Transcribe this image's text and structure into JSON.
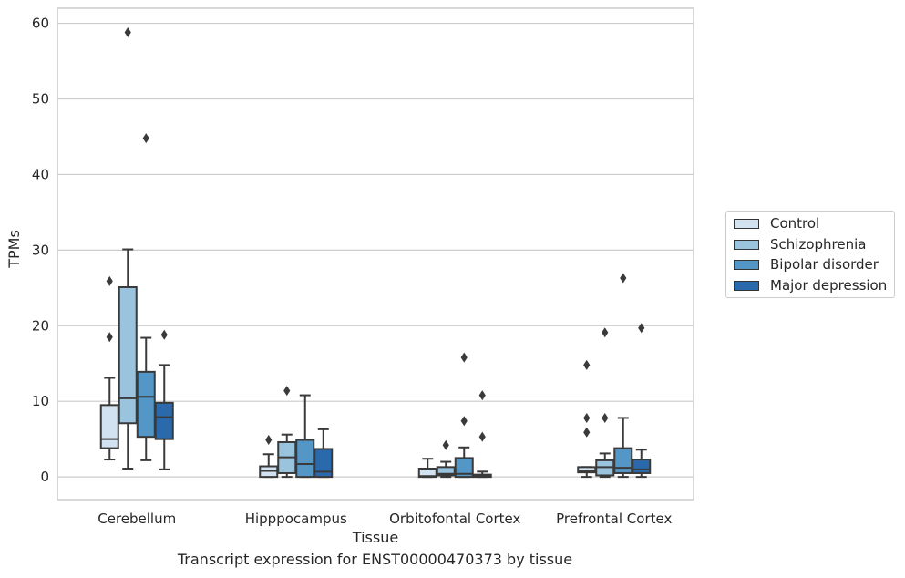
{
  "chart_data": {
    "type": "box",
    "title": "",
    "caption": "Transcript expression for ENST00000470373 by tissue",
    "xlabel": "Tissue",
    "ylabel": "TPMs",
    "ylim": [
      -3,
      62
    ],
    "yticks": [
      0,
      10,
      20,
      30,
      40,
      50,
      60
    ],
    "grid": "horizontal",
    "legend_position": "right",
    "categories": [
      "Cerebellum",
      "Hipppocampus",
      "Orbitofontal Cortex",
      "Prefrontal Cortex"
    ],
    "series": [
      {
        "name": "Control",
        "color": "#d2e2f0",
        "boxes": [
          {
            "whislo": 2.3,
            "q1": 3.8,
            "med": 5.0,
            "q3": 9.5,
            "whishi": 13.1,
            "fliers": [
              25.9,
              18.5
            ]
          },
          {
            "whislo": 0.0,
            "q1": 0.0,
            "med": 0.8,
            "q3": 1.4,
            "whishi": 3.0,
            "fliers": [
              4.9
            ]
          },
          {
            "whislo": 0.0,
            "q1": 0.0,
            "med": 0.1,
            "q3": 1.1,
            "whishi": 2.4,
            "fliers": []
          },
          {
            "whislo": 0.0,
            "q1": 0.6,
            "med": 0.8,
            "q3": 1.3,
            "whishi": 1.3,
            "fliers": [
              14.8,
              7.8,
              5.9
            ]
          }
        ]
      },
      {
        "name": "Schizophrenia",
        "color": "#9ac3dd",
        "boxes": [
          {
            "whislo": 1.1,
            "q1": 7.1,
            "med": 10.4,
            "q3": 25.1,
            "whishi": 30.1,
            "fliers": [
              58.8
            ]
          },
          {
            "whislo": 0.0,
            "q1": 0.5,
            "med": 2.6,
            "q3": 4.6,
            "whishi": 5.6,
            "fliers": [
              11.4
            ]
          },
          {
            "whislo": 0.0,
            "q1": 0.2,
            "med": 0.4,
            "q3": 1.3,
            "whishi": 2.0,
            "fliers": [
              4.2
            ]
          },
          {
            "whislo": 0.0,
            "q1": 0.2,
            "med": 1.3,
            "q3": 2.2,
            "whishi": 3.1,
            "fliers": [
              19.1,
              7.8
            ]
          }
        ]
      },
      {
        "name": "Bipolar disorder",
        "color": "#5496c5",
        "boxes": [
          {
            "whislo": 2.2,
            "q1": 5.3,
            "med": 10.6,
            "q3": 13.9,
            "whishi": 18.4,
            "fliers": [
              44.8
            ]
          },
          {
            "whislo": 0.0,
            "q1": 0.0,
            "med": 1.7,
            "q3": 4.9,
            "whishi": 10.8,
            "fliers": []
          },
          {
            "whislo": 0.0,
            "q1": 0.0,
            "med": 0.4,
            "q3": 2.5,
            "whishi": 3.9,
            "fliers": [
              15.8,
              7.4
            ]
          },
          {
            "whislo": 0.0,
            "q1": 0.5,
            "med": 1.2,
            "q3": 3.8,
            "whishi": 7.8,
            "fliers": [
              26.3
            ]
          }
        ]
      },
      {
        "name": "Major depression",
        "color": "#2a6aac",
        "boxes": [
          {
            "whislo": 1.0,
            "q1": 5.0,
            "med": 7.9,
            "q3": 9.8,
            "whishi": 14.8,
            "fliers": [
              18.8
            ]
          },
          {
            "whislo": 0.0,
            "q1": 0.0,
            "med": 0.7,
            "q3": 3.7,
            "whishi": 6.3,
            "fliers": []
          },
          {
            "whislo": 0.0,
            "q1": 0.0,
            "med": 0.1,
            "q3": 0.3,
            "whishi": 0.7,
            "fliers": [
              10.8,
              5.3
            ]
          },
          {
            "whislo": 0.0,
            "q1": 0.5,
            "med": 1.0,
            "q3": 2.3,
            "whishi": 3.6,
            "fliers": [
              19.7
            ]
          }
        ]
      }
    ]
  }
}
